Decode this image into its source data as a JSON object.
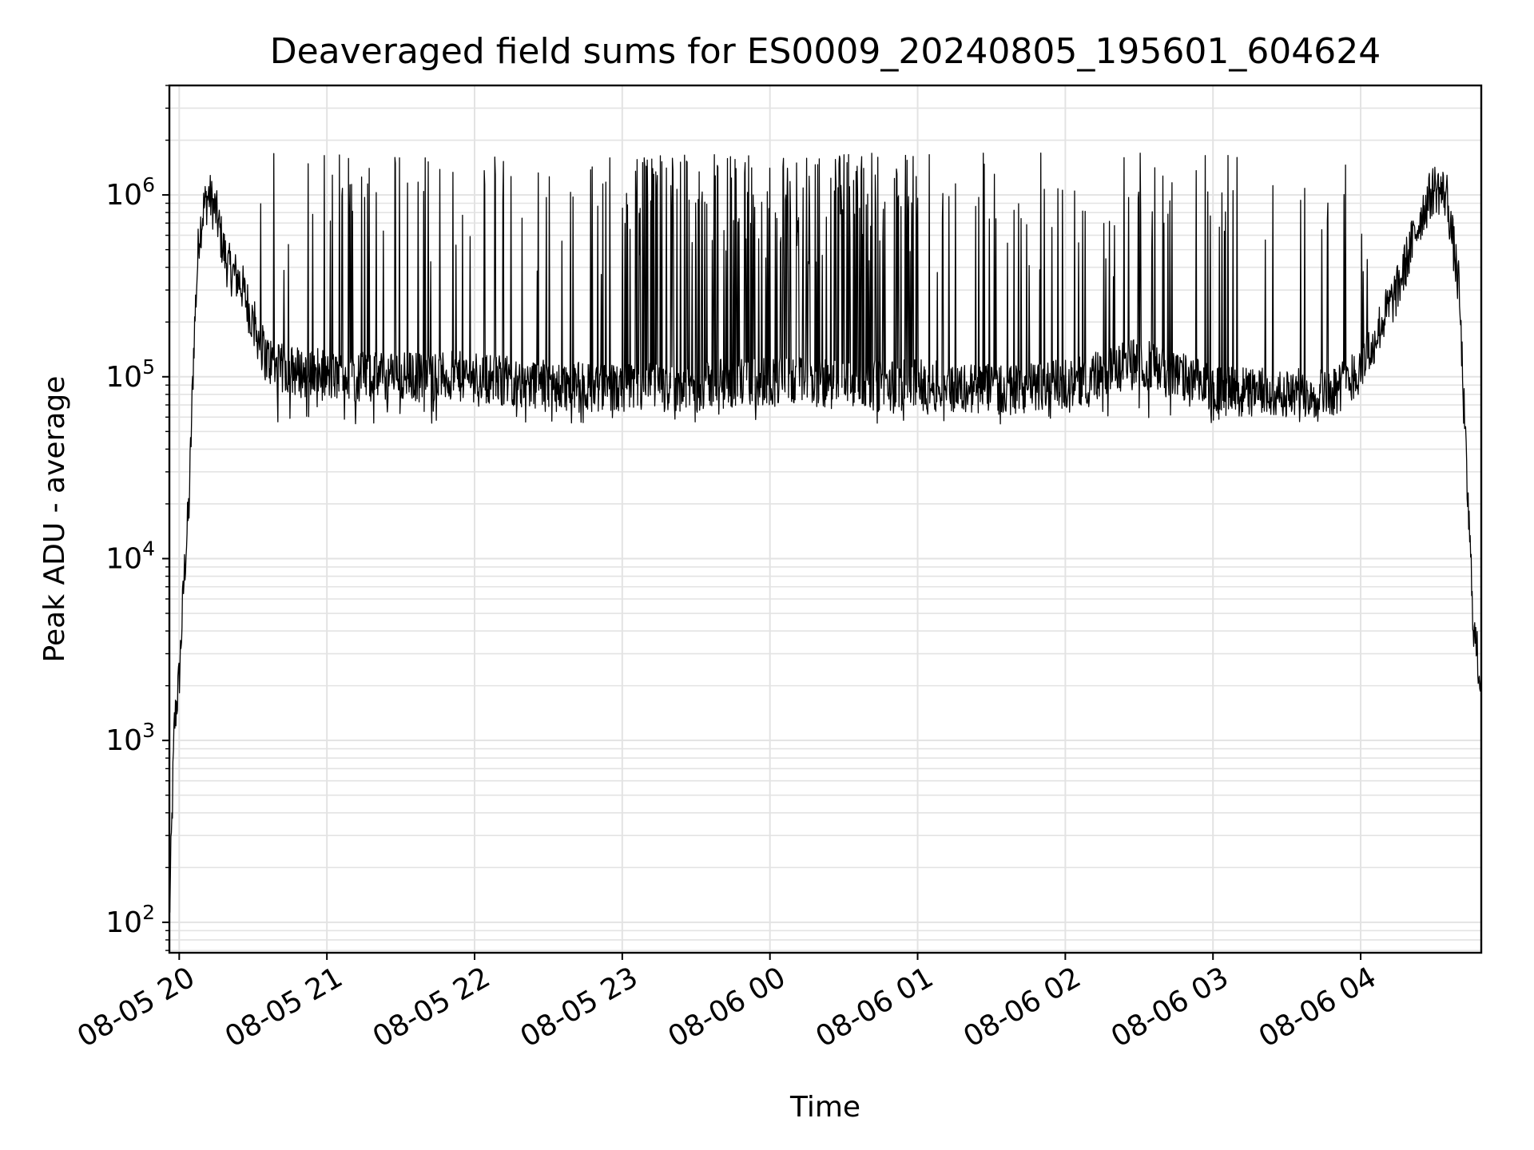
{
  "chart_data": {
    "type": "line",
    "title": "Deaveraged field sums for ES0009_20240805_195601_604624",
    "xlabel": "Time",
    "ylabel": "Peak ADU - average",
    "yscale": "log",
    "ylim": [
      68,
      4000000
    ],
    "xlim": [
      "2024-08-05 19:56",
      "2024-08-06 04:49"
    ],
    "x_ticks": [
      "08-05 20",
      "08-05 21",
      "08-05 22",
      "08-05 23",
      "08-06 00",
      "08-06 01",
      "08-06 02",
      "08-06 03",
      "08-06 04"
    ],
    "y_ticks": [
      {
        "base": "10",
        "exp": "2"
      },
      {
        "base": "10",
        "exp": "3"
      },
      {
        "base": "10",
        "exp": "4"
      },
      {
        "base": "10",
        "exp": "5"
      },
      {
        "base": "10",
        "exp": "6"
      }
    ],
    "grid": true,
    "line_color": "#000000",
    "grid_color": "#e3e3e3",
    "series": [
      {
        "x": [
          "2024-08-05 19:56",
          "2024-08-05 19:58",
          "2024-08-05 20:00",
          "2024-08-05 20:02",
          "2024-08-05 20:04",
          "2024-08-05 20:06",
          "2024-08-05 20:08",
          "2024-08-05 20:10",
          "2024-08-05 20:12",
          "2024-08-05 20:15",
          "2024-08-05 20:18",
          "2024-08-05 20:20",
          "2024-08-05 20:25",
          "2024-08-05 20:30",
          "2024-08-05 20:35",
          "2024-08-05 20:40",
          "2024-08-05 20:45",
          "2024-08-05 20:50",
          "2024-08-05 20:55",
          "2024-08-05 21:00",
          "2024-08-05 21:30",
          "2024-08-05 22:00",
          "2024-08-05 22:30",
          "2024-08-05 23:00",
          "2024-08-05 23:30",
          "2024-08-06 00:00",
          "2024-08-06 00:30",
          "2024-08-06 01:00",
          "2024-08-06 01:30",
          "2024-08-06 02:00",
          "2024-08-06 02:30",
          "2024-08-06 03:00",
          "2024-08-06 03:30",
          "2024-08-06 03:50",
          "2024-08-06 04:00",
          "2024-08-06 04:10",
          "2024-08-06 04:15",
          "2024-08-06 04:20",
          "2024-08-06 04:25",
          "2024-08-06 04:30",
          "2024-08-06 04:35",
          "2024-08-06 04:40",
          "2024-08-06 04:43",
          "2024-08-06 04:46",
          "2024-08-06 04:49"
        ],
        "y": [
          100,
          1200,
          2200,
          8000,
          20000,
          160000,
          600000,
          850000,
          1000000,
          800000,
          500000,
          400000,
          330000,
          200000,
          130000,
          110000,
          110000,
          105000,
          105000,
          100000,
          100000,
          100000,
          90000,
          85000,
          90000,
          95000,
          90000,
          90000,
          85000,
          90000,
          120000,
          85000,
          80000,
          85000,
          110000,
          220000,
          300000,
          500000,
          800000,
          1100000,
          1000000,
          300000,
          30000,
          4000,
          2000
        ]
      }
    ]
  }
}
